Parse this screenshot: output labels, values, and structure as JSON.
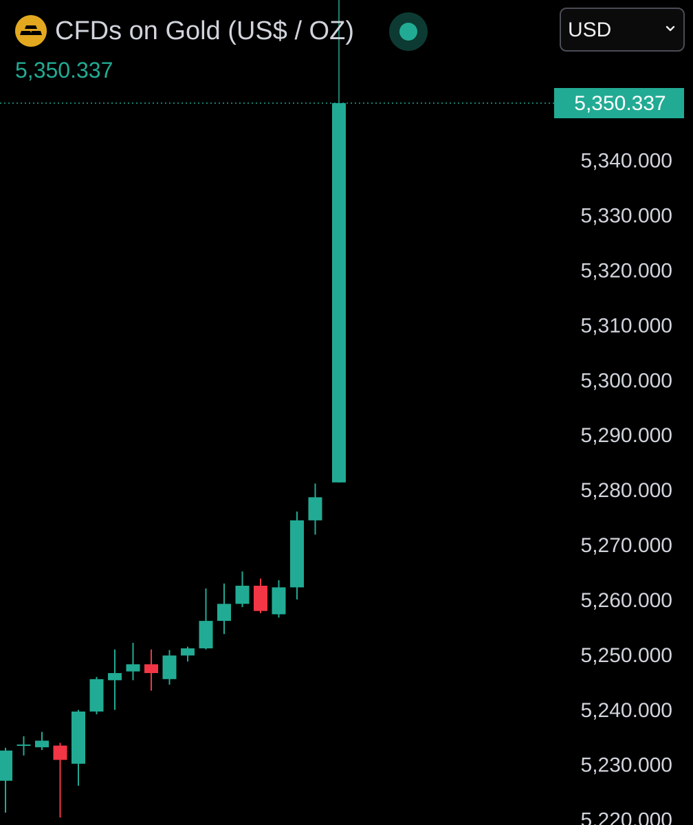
{
  "header": {
    "title": "CFDs on Gold (US$ / OZ)",
    "last_price": "5,350.337",
    "currency": "USD",
    "logo_icon": "gold-bars-icon",
    "status_icon": "market-open-dot-icon",
    "dropdown_icon": "chevron-down-icon"
  },
  "colors": {
    "background": "#000000",
    "up": "#22ab94",
    "down": "#f23645",
    "axis_text": "#d1d4dc",
    "price_label_bg": "#22ab94",
    "logo": "#e2a81f"
  },
  "chart_data": {
    "type": "candlestick",
    "y_axis": {
      "side": "right",
      "ticks": [
        "5,340.000",
        "5,330.000",
        "5,320.000",
        "5,310.000",
        "5,300.000",
        "5,290.000",
        "5,280.000",
        "5,270.000",
        "5,260.000",
        "5,250.000",
        "5,240.000",
        "5,230.000",
        "5,220.000"
      ],
      "tick_values": [
        5340,
        5330,
        5320,
        5310,
        5300,
        5290,
        5280,
        5270,
        5260,
        5250,
        5240,
        5230,
        5220
      ],
      "range": [
        5219.7,
        5361.0
      ]
    },
    "current_price": 5350.337,
    "current_price_label": "5,350.337",
    "crosshair": true,
    "grid": false,
    "candles": [
      {
        "o": 5227.0,
        "h": 5233.0,
        "l": 5221.2,
        "c": 5232.5
      },
      {
        "o": 5233.4,
        "h": 5235.1,
        "l": 5231.6,
        "c": 5233.6
      },
      {
        "o": 5233.1,
        "h": 5235.9,
        "l": 5232.6,
        "c": 5234.3
      },
      {
        "o": 5233.4,
        "h": 5233.9,
        "l": 5220.3,
        "c": 5230.8
      },
      {
        "o": 5230.1,
        "h": 5239.9,
        "l": 5226.1,
        "c": 5239.6
      },
      {
        "o": 5239.6,
        "h": 5245.9,
        "l": 5239.1,
        "c": 5245.5
      },
      {
        "o": 5245.3,
        "h": 5250.9,
        "l": 5239.9,
        "c": 5246.6
      },
      {
        "o": 5246.9,
        "h": 5252.1,
        "l": 5245.3,
        "c": 5248.2
      },
      {
        "o": 5248.2,
        "h": 5250.9,
        "l": 5243.4,
        "c": 5246.6
      },
      {
        "o": 5245.5,
        "h": 5250.8,
        "l": 5244.5,
        "c": 5249.8
      },
      {
        "o": 5249.8,
        "h": 5251.4,
        "l": 5248.7,
        "c": 5251.1
      },
      {
        "o": 5251.1,
        "h": 5262.0,
        "l": 5250.9,
        "c": 5256.1
      },
      {
        "o": 5256.1,
        "h": 5262.9,
        "l": 5253.7,
        "c": 5259.2
      },
      {
        "o": 5259.2,
        "h": 5265.1,
        "l": 5258.6,
        "c": 5262.5
      },
      {
        "o": 5262.5,
        "h": 5263.8,
        "l": 5257.5,
        "c": 5257.9
      },
      {
        "o": 5257.3,
        "h": 5263.5,
        "l": 5256.7,
        "c": 5262.2
      },
      {
        "o": 5262.2,
        "h": 5276.0,
        "l": 5260.0,
        "c": 5274.4
      },
      {
        "o": 5274.4,
        "h": 5281.1,
        "l": 5271.8,
        "c": 5278.6
      },
      {
        "o": 5281.3,
        "h": 5350.337,
        "l": 5281.3,
        "c": 5350.337
      }
    ]
  }
}
